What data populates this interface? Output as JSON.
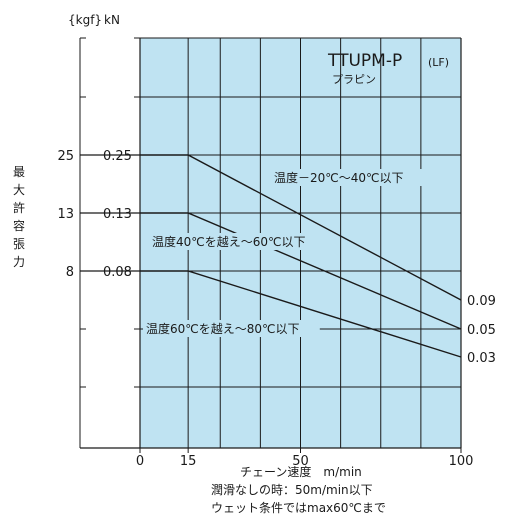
{
  "chart_data": {
    "type": "line",
    "title": "TTUPM-P",
    "title_suffix": "(LF)",
    "subtitle": "プラピン",
    "ylabel": "最大許容張力",
    "ylabel_chars": [
      "最",
      "大",
      "許",
      "容",
      "張",
      "力"
    ],
    "units": {
      "kgf": "{kgf}",
      "kn": "kN"
    },
    "xlim": [
      0,
      100
    ],
    "x_ticks": [
      "0",
      "15",
      "50",
      "100"
    ],
    "y_ticks_kn": [
      "0.25",
      "0.13",
      "0.08"
    ],
    "y_ticks_kgf": [
      "25",
      "13",
      "8"
    ],
    "grid": true,
    "background_color": "#bfe3f2",
    "line_color": "#1a1a1a",
    "x": [
      0,
      15,
      100
    ],
    "series": [
      {
        "name": "温度－20℃～40℃以下",
        "values": [
          0.25,
          0.25,
          0.09
        ],
        "end_label": "0.09"
      },
      {
        "name": "温度40℃を越え～60℃以下",
        "values": [
          0.13,
          0.13,
          0.05
        ],
        "end_label": "0.05"
      },
      {
        "name": "温度60℃を越え～80℃以下",
        "values": [
          0.08,
          0.08,
          0.03
        ],
        "end_label": "0.03"
      }
    ]
  },
  "footer": {
    "xlabel": "チェーン速度　m/min",
    "note_1": "潤滑なしの時：50m/min以下",
    "note_2": "ウェット条件ではmax60℃まで"
  }
}
